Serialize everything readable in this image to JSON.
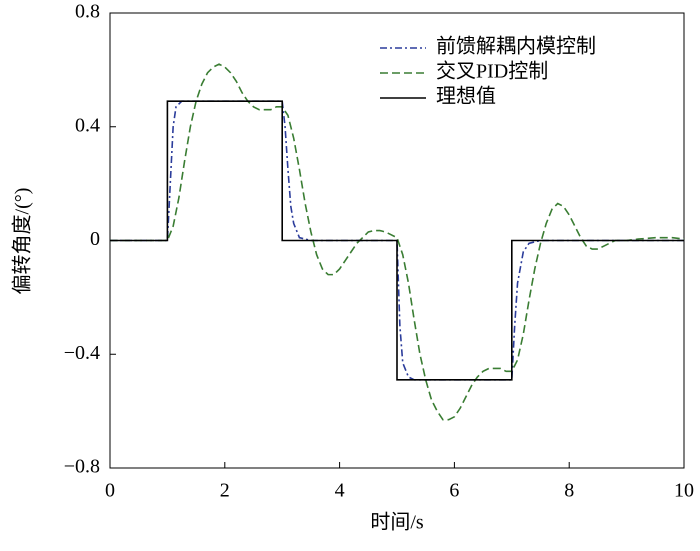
{
  "chart_data": {
    "type": "line",
    "xlabel": "时间/s",
    "ylabel": "偏转角度/(°)",
    "xlim": [
      0,
      10
    ],
    "ylim": [
      -0.8,
      0.8
    ],
    "xticks": [
      0,
      2,
      4,
      6,
      8,
      10
    ],
    "yticks": [
      {
        "value": -0.8,
        "label": "−0.8"
      },
      {
        "value": -0.4,
        "label": "−0.4"
      },
      0,
      0.4,
      0.8
    ],
    "legend": "upper right",
    "series": [
      {
        "name": "前馈解耦内模控制",
        "color": "#2b3c9b",
        "dash": "7 3 2 3",
        "x": [
          0,
          1,
          1.05,
          1.1,
          1.15,
          1.25,
          1.5,
          3,
          3.05,
          3.1,
          3.15,
          3.2,
          3.3,
          3.5,
          5,
          5.05,
          5.1,
          5.2,
          5.3,
          7,
          7.05,
          7.1,
          7.2,
          7.3,
          7.5,
          10
        ],
        "values": [
          0,
          0,
          0.2,
          0.4,
          0.47,
          0.49,
          0.49,
          0.49,
          0.4,
          0.25,
          0.12,
          0.06,
          0.01,
          0,
          0,
          -0.3,
          -0.43,
          -0.48,
          -0.49,
          -0.49,
          -0.3,
          -0.15,
          -0.04,
          -0.01,
          0,
          0
        ]
      },
      {
        "name": "交叉PID控制",
        "color": "#3a7d33",
        "dash": "8 4",
        "x": [
          0,
          1,
          1.1,
          1.2,
          1.3,
          1.4,
          1.5,
          1.6,
          1.7,
          1.8,
          1.9,
          2,
          2.1,
          2.2,
          2.3,
          2.4,
          2.5,
          2.6,
          2.7,
          2.8,
          2.9,
          3,
          3.1,
          3.2,
          3.3,
          3.4,
          3.5,
          3.6,
          3.7,
          3.8,
          3.9,
          4,
          4.1,
          4.2,
          4.3,
          4.4,
          4.5,
          4.6,
          4.7,
          4.8,
          4.9,
          5,
          5.1,
          5.2,
          5.3,
          5.4,
          5.5,
          5.6,
          5.7,
          5.8,
          5.9,
          6,
          6.1,
          6.2,
          6.3,
          6.4,
          6.5,
          6.6,
          6.7,
          6.8,
          6.9,
          7,
          7.1,
          7.2,
          7.3,
          7.4,
          7.5,
          7.6,
          7.7,
          7.8,
          7.9,
          8,
          8.1,
          8.2,
          8.3,
          8.4,
          8.5,
          8.6,
          8.7,
          8.8,
          9,
          9.2,
          9.5,
          9.8,
          10
        ],
        "values": [
          0,
          0,
          0.05,
          0.15,
          0.28,
          0.4,
          0.49,
          0.55,
          0.59,
          0.61,
          0.62,
          0.61,
          0.59,
          0.56,
          0.52,
          0.49,
          0.47,
          0.46,
          0.46,
          0.46,
          0.47,
          0.47,
          0.44,
          0.36,
          0.25,
          0.13,
          0.03,
          -0.05,
          -0.1,
          -0.12,
          -0.12,
          -0.1,
          -0.07,
          -0.04,
          -0.01,
          0.01,
          0.03,
          0.035,
          0.035,
          0.03,
          0.02,
          0.01,
          -0.05,
          -0.15,
          -0.28,
          -0.4,
          -0.49,
          -0.56,
          -0.6,
          -0.63,
          -0.63,
          -0.62,
          -0.59,
          -0.55,
          -0.51,
          -0.48,
          -0.46,
          -0.45,
          -0.45,
          -0.45,
          -0.46,
          -0.46,
          -0.42,
          -0.33,
          -0.21,
          -0.1,
          -0.01,
          0.06,
          0.11,
          0.13,
          0.12,
          0.09,
          0.05,
          0.01,
          -0.02,
          -0.03,
          -0.03,
          -0.02,
          -0.01,
          0,
          0,
          0.005,
          0.01,
          0.01,
          0.005
        ]
      },
      {
        "name": "理想值",
        "color": "#000000",
        "dash": "none",
        "x": [
          0,
          1,
          1,
          3,
          3,
          5,
          5,
          7,
          7,
          10
        ],
        "values": [
          0,
          0,
          0.49,
          0.49,
          0,
          0,
          -0.49,
          -0.49,
          0,
          0
        ]
      }
    ]
  }
}
